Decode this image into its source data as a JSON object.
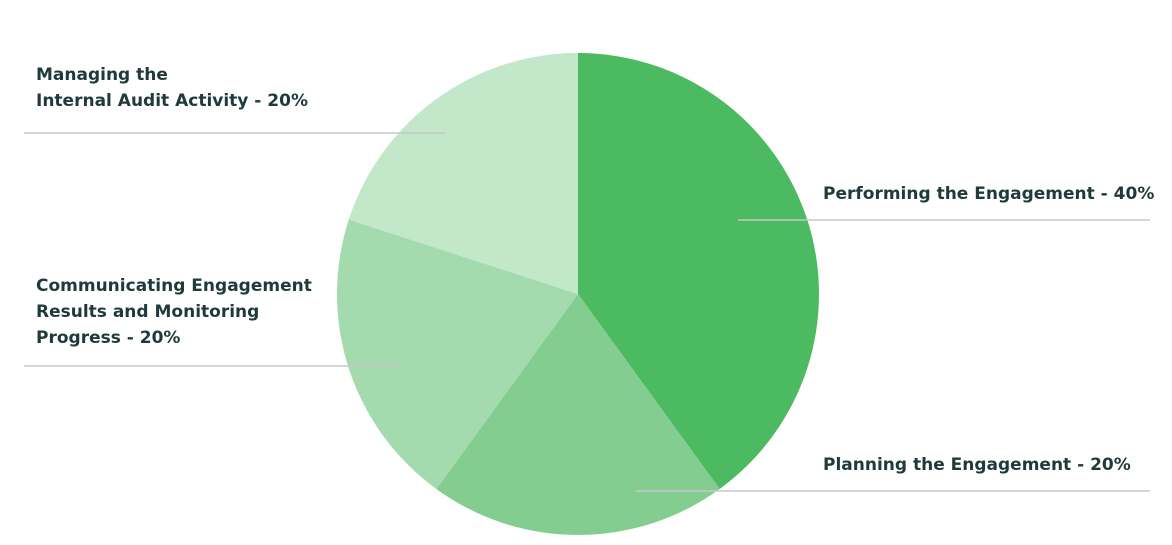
{
  "chart_data": {
    "type": "pie",
    "categories": [
      [
        "Performing the Engagement - 40%"
      ],
      [
        "Planning the Engagement - 20%"
      ],
      [
        "Communicating Engagement",
        "Results and Monitoring",
        "Progress - 20%"
      ],
      [
        "Managing the",
        "Internal Audit Activity - 20%"
      ]
    ],
    "values": [
      40,
      20,
      20,
      20
    ],
    "colors": [
      "#4cba60",
      "#82cd8f",
      "#a4dbae",
      "#c2e7c9"
    ]
  }
}
